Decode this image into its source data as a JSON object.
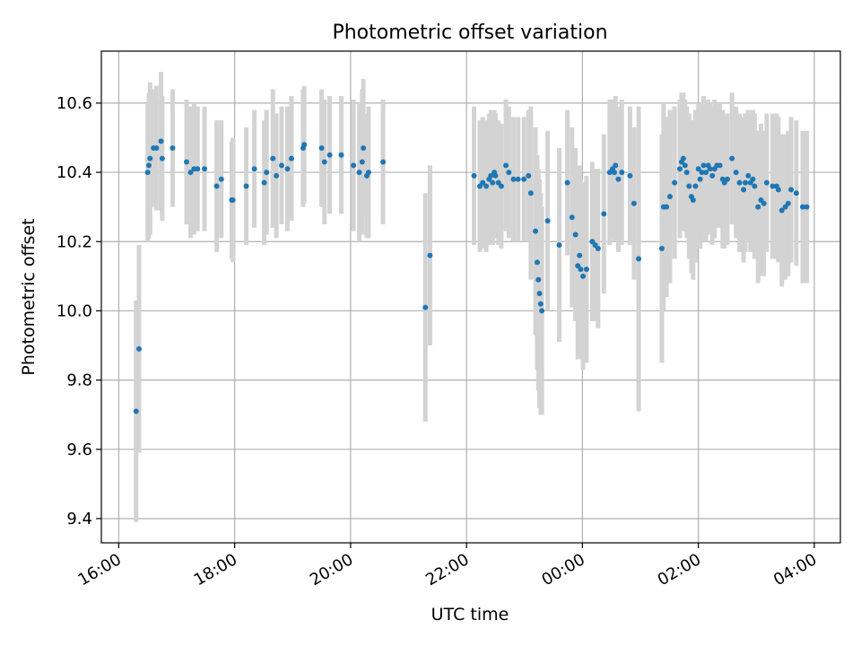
{
  "chart_data": {
    "type": "scatter",
    "title": "Photometric offset variation",
    "xlabel": "UTC time",
    "ylabel": "Photometric offset",
    "x_unit": "hours",
    "xlim": [
      -0.3,
      12.45
    ],
    "ylim": [
      9.33,
      10.75
    ],
    "x_ticks": [
      0,
      2,
      4,
      6,
      8,
      10,
      12
    ],
    "x_tick_labels": [
      "16:00",
      "18:00",
      "20:00",
      "22:00",
      "00:00",
      "02:00",
      "04:00"
    ],
    "y_ticks": [
      9.4,
      9.6,
      9.8,
      10.0,
      10.2,
      10.4,
      10.6
    ],
    "y_tick_labels": [
      "9.4",
      "9.6",
      "9.8",
      "10.0",
      "10.2",
      "10.4",
      "10.6"
    ],
    "grid": true,
    "series": [
      {
        "marker_color": "#1f77b4",
        "errorbar_color": "#d3d3d3",
        "x": [
          0.3,
          0.35,
          0.5,
          0.52,
          0.54,
          0.6,
          0.65,
          0.73,
          0.75,
          0.93,
          1.17,
          1.24,
          1.3,
          1.36,
          1.48,
          1.69,
          1.77,
          1.95,
          1.97,
          2.2,
          2.34,
          2.51,
          2.55,
          2.66,
          2.72,
          2.81,
          2.91,
          2.98,
          3.18,
          3.2,
          3.5,
          3.55,
          3.64,
          3.84,
          4.05,
          4.15,
          4.2,
          4.22,
          4.28,
          4.31,
          4.56,
          5.29,
          5.37,
          6.13,
          6.23,
          6.28,
          6.34,
          6.39,
          6.42,
          6.45,
          6.48,
          6.5,
          6.55,
          6.6,
          6.68,
          6.73,
          6.81,
          6.89,
          6.99,
          7.07,
          7.11,
          7.19,
          7.22,
          7.24,
          7.26,
          7.28,
          7.3,
          7.4,
          7.6,
          7.74,
          7.82,
          7.88,
          7.92,
          7.95,
          7.97,
          8.01,
          8.07,
          8.17,
          8.22,
          8.27,
          8.37,
          8.47,
          8.52,
          8.55,
          8.57,
          8.62,
          8.68,
          8.82,
          8.89,
          8.97,
          9.37,
          9.4,
          9.45,
          9.51,
          9.59,
          9.68,
          9.71,
          9.74,
          9.77,
          9.8,
          9.84,
          9.88,
          9.91,
          9.95,
          10.0,
          10.03,
          10.06,
          10.09,
          10.13,
          10.17,
          10.2,
          10.24,
          10.28,
          10.32,
          10.37,
          10.42,
          10.45,
          10.5,
          10.58,
          10.65,
          10.71,
          10.78,
          10.81,
          10.86,
          10.9,
          10.94,
          10.97,
          11.03,
          11.08,
          11.13,
          11.18,
          11.28,
          11.35,
          11.38,
          11.44,
          11.5,
          11.55,
          11.6,
          11.69,
          11.8,
          11.87
        ],
        "y": [
          9.71,
          9.89,
          10.4,
          10.42,
          10.44,
          10.47,
          10.47,
          10.49,
          10.44,
          10.47,
          10.43,
          10.4,
          10.41,
          10.41,
          10.41,
          10.36,
          10.38,
          10.32,
          10.32,
          10.36,
          10.41,
          10.37,
          10.4,
          10.44,
          10.39,
          10.42,
          10.41,
          10.44,
          10.47,
          10.48,
          10.47,
          10.43,
          10.45,
          10.45,
          10.42,
          10.4,
          10.43,
          10.47,
          10.39,
          10.4,
          10.43,
          10.01,
          10.16,
          10.39,
          10.36,
          10.37,
          10.36,
          10.38,
          10.39,
          10.37,
          10.4,
          10.39,
          10.37,
          10.36,
          10.42,
          10.4,
          10.38,
          10.38,
          10.38,
          10.39,
          10.34,
          10.23,
          10.14,
          10.09,
          10.05,
          10.02,
          10.0,
          10.26,
          10.19,
          10.37,
          10.27,
          10.22,
          10.13,
          10.16,
          10.12,
          10.1,
          10.12,
          10.2,
          10.19,
          10.18,
          10.28,
          10.4,
          10.41,
          10.4,
          10.42,
          10.38,
          10.4,
          10.39,
          10.31,
          10.15,
          10.18,
          10.3,
          10.3,
          10.33,
          10.37,
          10.41,
          10.43,
          10.44,
          10.42,
          10.4,
          10.36,
          10.33,
          10.32,
          10.36,
          10.41,
          10.38,
          10.4,
          10.42,
          10.4,
          10.42,
          10.41,
          10.39,
          10.41,
          10.42,
          10.42,
          10.38,
          10.37,
          10.38,
          10.44,
          10.4,
          10.37,
          10.35,
          10.37,
          10.39,
          10.37,
          10.38,
          10.36,
          10.3,
          10.32,
          10.31,
          10.37,
          10.36,
          10.36,
          10.35,
          10.29,
          10.3,
          10.31,
          10.35,
          10.34,
          10.3,
          10.3
        ],
        "yerr": [
          0.32,
          0.3,
          0.2,
          0.21,
          0.22,
          0.17,
          0.18,
          0.2,
          0.18,
          0.17,
          0.18,
          0.19,
          0.19,
          0.18,
          0.18,
          0.19,
          0.17,
          0.17,
          0.18,
          0.17,
          0.17,
          0.18,
          0.18,
          0.2,
          0.18,
          0.17,
          0.18,
          0.18,
          0.17,
          0.17,
          0.17,
          0.18,
          0.17,
          0.17,
          0.19,
          0.2,
          0.21,
          0.2,
          0.18,
          0.19,
          0.18,
          0.33,
          0.26,
          0.2,
          0.19,
          0.19,
          0.19,
          0.19,
          0.19,
          0.18,
          0.18,
          0.18,
          0.18,
          0.18,
          0.19,
          0.19,
          0.18,
          0.18,
          0.18,
          0.19,
          0.25,
          0.3,
          0.31,
          0.32,
          0.33,
          0.32,
          0.3,
          0.26,
          0.28,
          0.21,
          0.26,
          0.25,
          0.27,
          0.26,
          0.26,
          0.27,
          0.27,
          0.23,
          0.22,
          0.23,
          0.23,
          0.21,
          0.2,
          0.2,
          0.2,
          0.21,
          0.21,
          0.2,
          0.22,
          0.44,
          0.33,
          0.3,
          0.26,
          0.25,
          0.22,
          0.2,
          0.2,
          0.19,
          0.19,
          0.19,
          0.21,
          0.22,
          0.23,
          0.22,
          0.19,
          0.2,
          0.2,
          0.2,
          0.2,
          0.19,
          0.19,
          0.2,
          0.2,
          0.18,
          0.18,
          0.2,
          0.19,
          0.19,
          0.19,
          0.19,
          0.2,
          0.21,
          0.2,
          0.19,
          0.2,
          0.2,
          0.21,
          0.22,
          0.22,
          0.21,
          0.2,
          0.21,
          0.21,
          0.21,
          0.22,
          0.21,
          0.21,
          0.21,
          0.21,
          0.22,
          0.22
        ]
      }
    ]
  }
}
